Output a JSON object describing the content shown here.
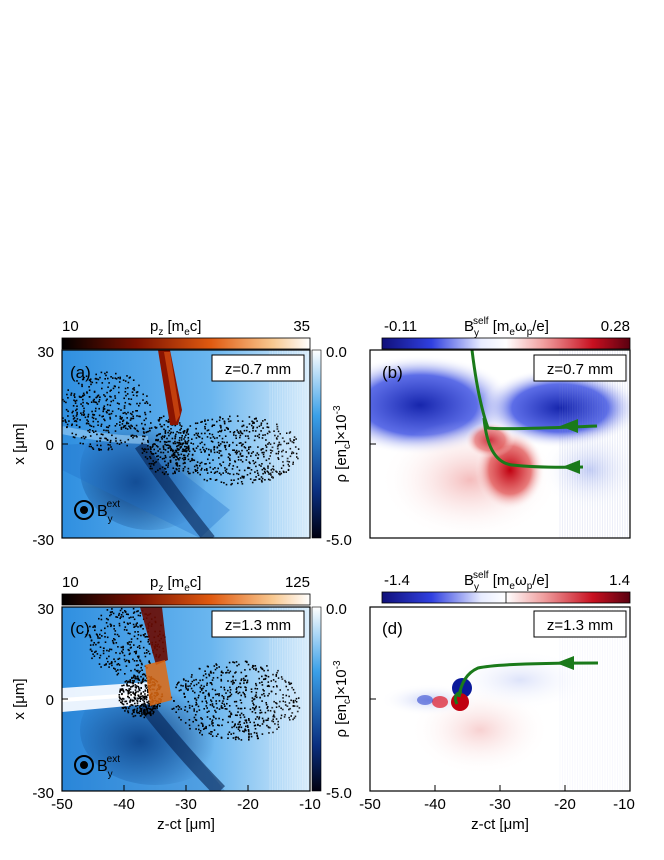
{
  "figure": {
    "panels": [
      {
        "id": "a",
        "label": "(a)",
        "time_label": "z=0.7 mm",
        "top_colorbar": {
          "quantity": "p",
          "subscript": "z",
          "unit_open": " [m",
          "unit_sub": "e",
          "unit_close": "c]",
          "min": "10",
          "max": "35",
          "cmap": "hot"
        },
        "side_colorbar": {
          "label_main": "ρ [en",
          "label_sub": "c",
          "label_end": "]×10",
          "label_sup": "-3",
          "top": "0.0",
          "bottom": "-5.0",
          "cmap": "blue"
        },
        "field_marker": {
          "main": "B",
          "sub": "y",
          "sup": "ext"
        },
        "x_ticks": [
          "30",
          "0",
          "-30"
        ],
        "xlabel_main": "x [μm]"
      },
      {
        "id": "b",
        "label": "(b)",
        "time_label": "z=0.7 mm",
        "top_colorbar": {
          "quantity": "B",
          "subscript": "y",
          "superscript": "self",
          "unit_open": " [m",
          "unit_sub": "e",
          "unit_mid": "ω",
          "unit_sub2": "p",
          "unit_close": "/e]",
          "min": "-0.11",
          "max": "0.28",
          "cmap": "seismic"
        }
      },
      {
        "id": "c",
        "label": "(c)",
        "time_label": "z=1.3 mm",
        "top_colorbar": {
          "quantity": "p",
          "subscript": "z",
          "unit_open": " [m",
          "unit_sub": "e",
          "unit_close": "c]",
          "min": "10",
          "max": "125",
          "cmap": "hot"
        },
        "side_colorbar": {
          "label_main": "ρ [en",
          "label_sub": "c",
          "label_end": "]×10",
          "label_sup": "-3",
          "top": "0.0",
          "bottom": "-5.0",
          "cmap": "blue"
        },
        "field_marker": {
          "main": "B",
          "sub": "y",
          "sup": "ext"
        },
        "x_ticks": [
          "30",
          "0",
          "-30"
        ],
        "xlabel_main": "x [μm]"
      },
      {
        "id": "d",
        "label": "(d)",
        "time_label": "z=1.3 mm",
        "top_colorbar": {
          "quantity": "B",
          "subscript": "y",
          "superscript": "self",
          "unit_open": " [m",
          "unit_sub": "e",
          "unit_mid": "ω",
          "unit_sub2": "p",
          "unit_close": "/e]",
          "min": "-1.4",
          "max": "1.4",
          "cmap": "seismic"
        }
      }
    ],
    "bottom_axis": {
      "ticks": [
        "-50",
        "-40",
        "-30",
        "-20",
        "-10"
      ],
      "label": "z-ct [μm]"
    }
  },
  "colors": {
    "trajectory": "#1a7a1a",
    "blue_dark": "#081a3c",
    "blue_light": "#ffffff",
    "seismic_neg": "#1a2bcc",
    "seismic_pos": "#b01020"
  }
}
